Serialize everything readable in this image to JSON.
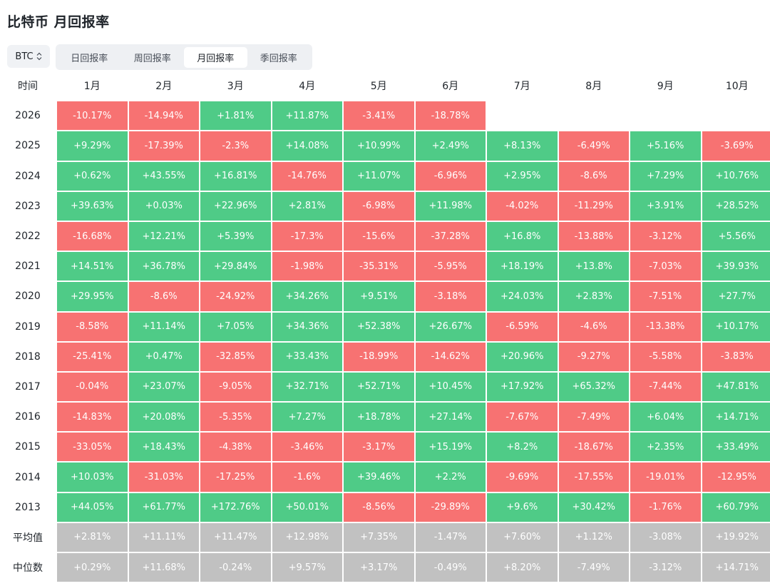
{
  "title": "比特币 月回报率",
  "asset_select": {
    "value": "BTC",
    "icon": "chevron-up-down-icon"
  },
  "tabs": [
    {
      "label": "日回报率",
      "active": false
    },
    {
      "label": "周回报率",
      "active": false
    },
    {
      "label": "月回报率",
      "active": true
    },
    {
      "label": "季回报率",
      "active": false
    }
  ],
  "colors": {
    "positive": "#4fcb87",
    "negative": "#f77272",
    "stat": "#c1c1c1"
  },
  "table": {
    "corner_label": "时间",
    "months": [
      "1月",
      "2月",
      "3月",
      "4月",
      "5月",
      "6月",
      "7月",
      "8月",
      "9月",
      "10月"
    ],
    "rows": [
      {
        "year": "2026",
        "values": [
          "-10.17%",
          "-14.94%",
          "+1.81%",
          "+11.87%",
          "-3.41%",
          "-18.78%",
          "",
          "",
          "",
          ""
        ]
      },
      {
        "year": "2025",
        "values": [
          "+9.29%",
          "-17.39%",
          "-2.3%",
          "+14.08%",
          "+10.99%",
          "+2.49%",
          "+8.13%",
          "-6.49%",
          "+5.16%",
          "-3.69%"
        ]
      },
      {
        "year": "2024",
        "values": [
          "+0.62%",
          "+43.55%",
          "+16.81%",
          "-14.76%",
          "+11.07%",
          "-6.96%",
          "+2.95%",
          "-8.6%",
          "+7.29%",
          "+10.76%"
        ]
      },
      {
        "year": "2023",
        "values": [
          "+39.63%",
          "+0.03%",
          "+22.96%",
          "+2.81%",
          "-6.98%",
          "+11.98%",
          "-4.02%",
          "-11.29%",
          "+3.91%",
          "+28.52%"
        ]
      },
      {
        "year": "2022",
        "values": [
          "-16.68%",
          "+12.21%",
          "+5.39%",
          "-17.3%",
          "-15.6%",
          "-37.28%",
          "+16.8%",
          "-13.88%",
          "-3.12%",
          "+5.56%"
        ]
      },
      {
        "year": "2021",
        "values": [
          "+14.51%",
          "+36.78%",
          "+29.84%",
          "-1.98%",
          "-35.31%",
          "-5.95%",
          "+18.19%",
          "+13.8%",
          "-7.03%",
          "+39.93%"
        ]
      },
      {
        "year": "2020",
        "values": [
          "+29.95%",
          "-8.6%",
          "-24.92%",
          "+34.26%",
          "+9.51%",
          "-3.18%",
          "+24.03%",
          "+2.83%",
          "-7.51%",
          "+27.7%"
        ]
      },
      {
        "year": "2019",
        "values": [
          "-8.58%",
          "+11.14%",
          "+7.05%",
          "+34.36%",
          "+52.38%",
          "+26.67%",
          "-6.59%",
          "-4.6%",
          "-13.38%",
          "+10.17%"
        ]
      },
      {
        "year": "2018",
        "values": [
          "-25.41%",
          "+0.47%",
          "-32.85%",
          "+33.43%",
          "-18.99%",
          "-14.62%",
          "+20.96%",
          "-9.27%",
          "-5.58%",
          "-3.83%"
        ]
      },
      {
        "year": "2017",
        "values": [
          "-0.04%",
          "+23.07%",
          "-9.05%",
          "+32.71%",
          "+52.71%",
          "+10.45%",
          "+17.92%",
          "+65.32%",
          "-7.44%",
          "+47.81%"
        ]
      },
      {
        "year": "2016",
        "values": [
          "-14.83%",
          "+20.08%",
          "-5.35%",
          "+7.27%",
          "+18.78%",
          "+27.14%",
          "-7.67%",
          "-7.49%",
          "+6.04%",
          "+14.71%"
        ]
      },
      {
        "year": "2015",
        "values": [
          "-33.05%",
          "+18.43%",
          "-4.38%",
          "-3.46%",
          "-3.17%",
          "+15.19%",
          "+8.2%",
          "-18.67%",
          "+2.35%",
          "+33.49%"
        ]
      },
      {
        "year": "2014",
        "values": [
          "+10.03%",
          "-31.03%",
          "-17.25%",
          "-1.6%",
          "+39.46%",
          "+2.2%",
          "-9.69%",
          "-17.55%",
          "-19.01%",
          "-12.95%"
        ]
      },
      {
        "year": "2013",
        "values": [
          "+44.05%",
          "+61.77%",
          "+172.76%",
          "+50.01%",
          "-8.56%",
          "-29.89%",
          "+9.6%",
          "+30.42%",
          "-1.76%",
          "+60.79%"
        ]
      }
    ],
    "stats": [
      {
        "label": "平均值",
        "values": [
          "+2.81%",
          "+11.11%",
          "+11.47%",
          "+12.98%",
          "+7.35%",
          "-1.47%",
          "+7.60%",
          "+1.12%",
          "-3.08%",
          "+19.92%"
        ]
      },
      {
        "label": "中位数",
        "values": [
          "+0.29%",
          "+11.68%",
          "-0.24%",
          "+9.57%",
          "+3.17%",
          "-0.49%",
          "+8.20%",
          "-7.49%",
          "-3.12%",
          "+14.71%"
        ]
      }
    ]
  }
}
